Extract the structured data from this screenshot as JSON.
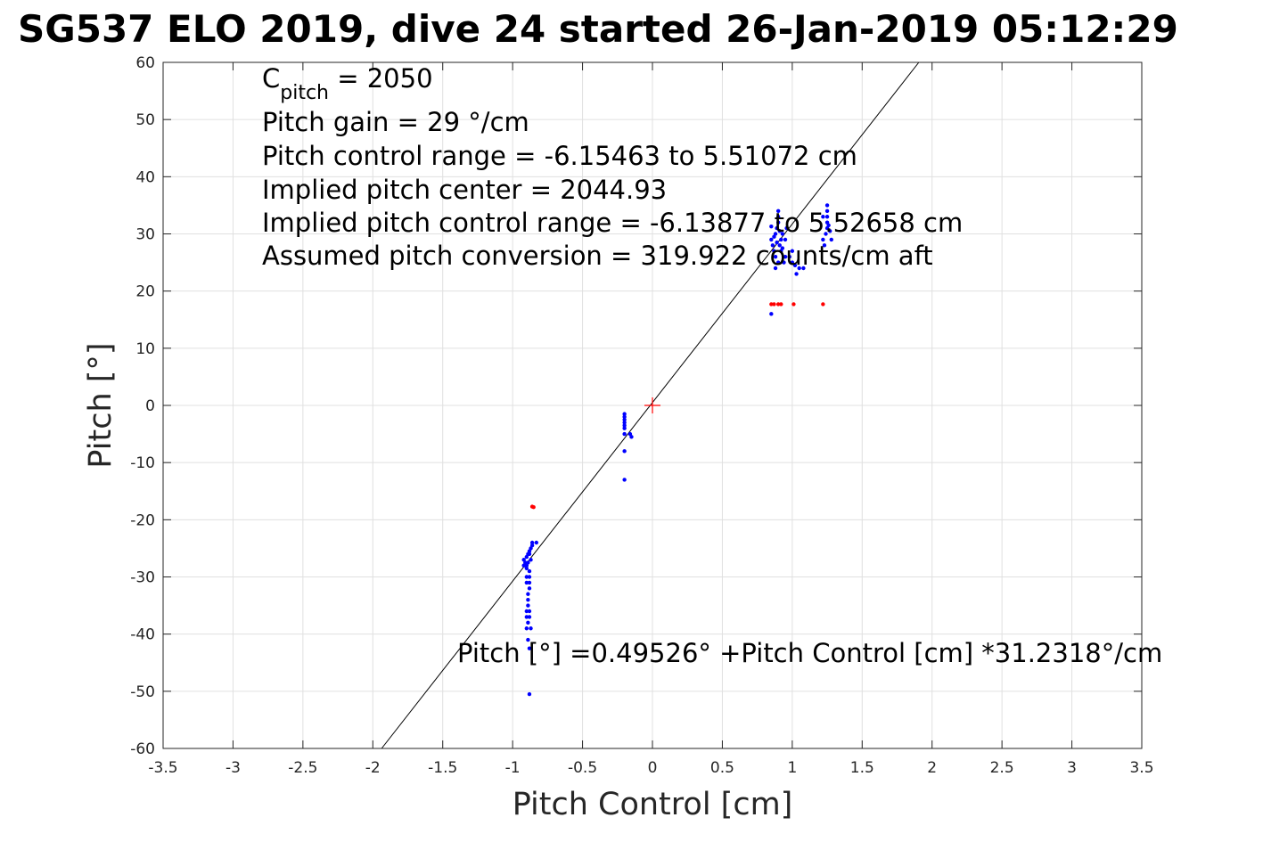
{
  "chart_data": {
    "type": "scatter",
    "title": "SG537 ELO 2019, dive 24 started 26-Jan-2019 05:12:29",
    "xlabel": "Pitch Control [cm]",
    "ylabel": "Pitch [°]",
    "xlim": [
      -3.5,
      3.5
    ],
    "ylim": [
      -60,
      60
    ],
    "grid": true,
    "x_ticks": [
      -3.5,
      -3,
      -2.5,
      -2,
      -1.5,
      -1,
      -0.5,
      0,
      0.5,
      1,
      1.5,
      2,
      2.5,
      3,
      3.5
    ],
    "x_tick_labels": [
      "-3.5",
      "-3",
      "-2.5",
      "-2",
      "-1.5",
      "-1",
      "-0.5",
      "0",
      "0.5",
      "1",
      "1.5",
      "2",
      "2.5",
      "3",
      "3.5"
    ],
    "y_ticks": [
      -60,
      -50,
      -40,
      -30,
      -20,
      -10,
      0,
      10,
      20,
      30,
      40,
      50,
      60
    ],
    "y_tick_labels": [
      "-60",
      "-50",
      "-40",
      "-30",
      "-20",
      "-10",
      "0",
      "10",
      "20",
      "30",
      "40",
      "50",
      "60"
    ],
    "colors": {
      "blue": "#0000ff",
      "red": "#ff0000",
      "fit_line": "#000000"
    },
    "series": [
      {
        "color": "#0000ff",
        "marker": "dot",
        "points": [
          [
            -0.9,
            -28
          ],
          [
            -0.91,
            -27.5
          ],
          [
            -0.92,
            -27
          ],
          [
            -0.9,
            -26.5
          ],
          [
            -0.89,
            -26
          ],
          [
            -0.88,
            -25.5
          ],
          [
            -0.87,
            -25
          ],
          [
            -0.86,
            -24.5
          ],
          [
            -0.86,
            -24
          ],
          [
            -0.83,
            -24
          ],
          [
            -0.9,
            -28.5
          ],
          [
            -0.91,
            -28
          ],
          [
            -0.88,
            -29
          ],
          [
            -0.88,
            -30
          ],
          [
            -0.88,
            -31
          ],
          [
            -0.88,
            -32
          ],
          [
            -0.9,
            -30
          ],
          [
            -0.9,
            -31
          ],
          [
            -0.89,
            -33
          ],
          [
            -0.89,
            -34
          ],
          [
            -0.89,
            -35
          ],
          [
            -0.9,
            -36
          ],
          [
            -0.9,
            -37
          ],
          [
            -0.89,
            -38
          ],
          [
            -0.88,
            -36
          ],
          [
            -0.88,
            -37
          ],
          [
            -0.9,
            -39
          ],
          [
            -0.87,
            -39
          ],
          [
            -0.89,
            -41
          ],
          [
            -0.88,
            -42.5
          ],
          [
            -0.88,
            -50.5
          ],
          [
            -0.92,
            -28
          ],
          [
            -0.87,
            -27
          ],
          [
            -0.88,
            -26
          ],
          [
            -0.89,
            -27.5
          ],
          [
            -0.2,
            -1.5
          ],
          [
            -0.2,
            -2
          ],
          [
            -0.2,
            -2.5
          ],
          [
            -0.2,
            -3
          ],
          [
            -0.2,
            -3.5
          ],
          [
            -0.2,
            -4
          ],
          [
            -0.2,
            -5
          ],
          [
            -0.2,
            -8
          ],
          [
            -0.2,
            -13
          ],
          [
            -0.15,
            -5.5
          ],
          [
            -0.16,
            -5
          ],
          [
            0.85,
            31.3
          ],
          [
            0.85,
            29
          ],
          [
            0.86,
            28
          ],
          [
            0.87,
            27
          ],
          [
            0.88,
            26
          ],
          [
            0.88,
            30
          ],
          [
            0.89,
            31
          ],
          [
            0.9,
            32
          ],
          [
            0.9,
            33
          ],
          [
            0.9,
            34
          ],
          [
            0.91,
            28
          ],
          [
            0.92,
            27
          ],
          [
            0.92,
            29
          ],
          [
            0.93,
            30
          ],
          [
            0.94,
            25
          ],
          [
            0.95,
            26
          ],
          [
            0.95,
            29
          ],
          [
            0.96,
            31
          ],
          [
            0.98,
            26
          ],
          [
            1.0,
            27
          ],
          [
            1.0,
            25
          ],
          [
            1.02,
            24.5
          ],
          [
            1.03,
            23
          ],
          [
            1.05,
            24
          ],
          [
            1.08,
            24
          ],
          [
            0.85,
            16
          ],
          [
            0.88,
            24
          ],
          [
            0.9,
            25
          ],
          [
            0.87,
            29.5
          ],
          [
            0.89,
            28.5
          ],
          [
            0.91,
            30.5
          ],
          [
            0.93,
            27.5
          ],
          [
            1.22,
            29
          ],
          [
            1.24,
            30
          ],
          [
            1.25,
            31
          ],
          [
            1.25,
            32
          ],
          [
            1.25,
            33
          ],
          [
            1.25,
            34
          ],
          [
            1.25,
            35
          ],
          [
            1.27,
            30.5
          ],
          [
            1.28,
            29
          ],
          [
            1.22,
            33
          ],
          [
            1.23,
            28
          ],
          [
            1.26,
            31.5
          ]
        ]
      },
      {
        "color": "#ff0000",
        "marker": "dot",
        "points": [
          [
            -0.85,
            -17.8
          ],
          [
            -0.86,
            -17.7
          ],
          [
            0.85,
            17.7
          ],
          [
            0.87,
            17.7
          ],
          [
            0.9,
            17.7
          ],
          [
            0.92,
            17.7
          ],
          [
            1.01,
            17.7
          ],
          [
            1.22,
            17.7
          ]
        ]
      }
    ],
    "reference_marker": {
      "x": 0,
      "y": 0,
      "marker": "+",
      "color": "#ff0000"
    },
    "fit": {
      "intercept": 0.49526,
      "slope": 31.2318
    },
    "annotations": {
      "cpitch_base": "C",
      "cpitch_sub": "pitch",
      "cpitch_value": " = 2050",
      "pitch_gain": "Pitch gain = 29 °/cm",
      "control_range": "Pitch control range = -6.15463 to 5.51072 cm",
      "implied_center": "Implied pitch center = 2044.93",
      "implied_range": "Implied pitch control range = -6.13877 to 5.52658 cm",
      "conversion": "Assumed pitch conversion = 319.922 counts/cm aft",
      "fit_equation": "Pitch [°] =0.49526° +Pitch Control [cm] *31.2318°/cm"
    }
  }
}
